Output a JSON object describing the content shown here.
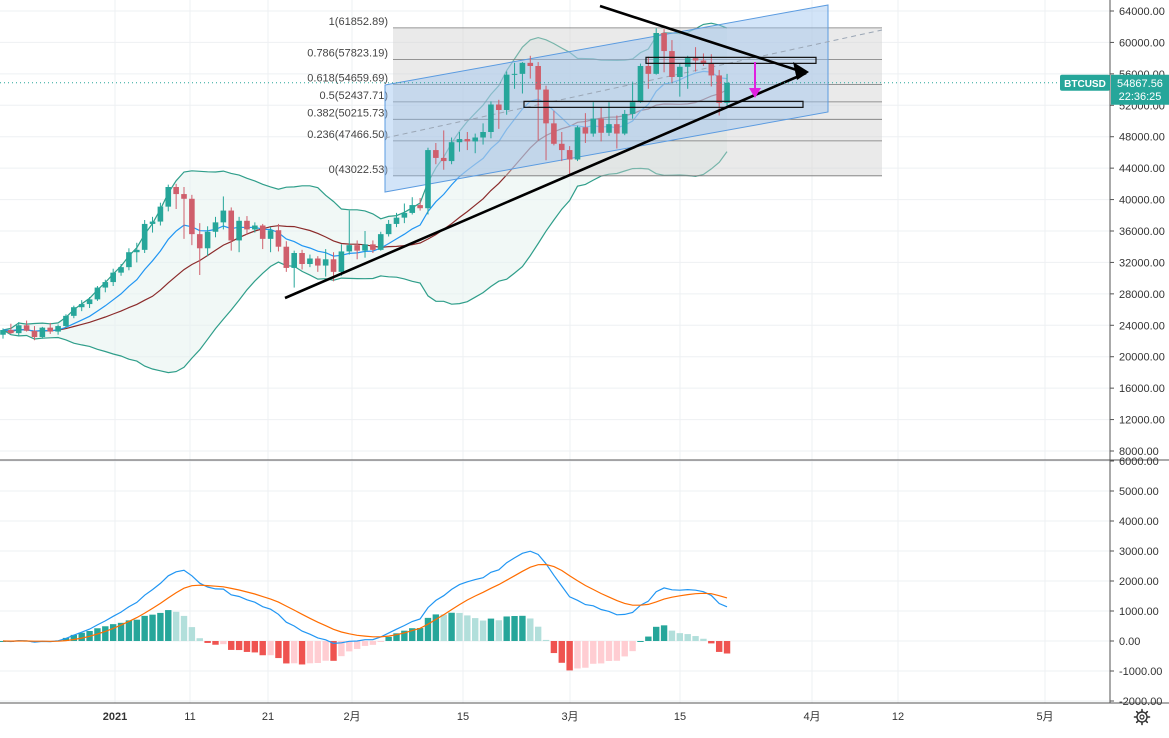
{
  "colors": {
    "up": "#26a69a",
    "down": "#ef5350",
    "down_candle": "#cf5f6c",
    "bb_basis": "#8b2b2b",
    "bb_band": "#2f9e8a",
    "ema_fast": "#2196f3",
    "macd_line": "#2196f3",
    "signal_line": "#ff6d00",
    "hist_up_strong": "#26a69a",
    "hist_up_weak": "#b2dfdb",
    "hist_down_strong": "#ef5350",
    "hist_down_weak": "#ffcdd2",
    "channel": "#5b9be0",
    "arrow": "#e020e0",
    "price_label_bg": "#26a69a"
  },
  "price_axis": {
    "ticks": [
      "64000.00",
      "60000.00",
      "56000.00",
      "52000.00",
      "48000.00",
      "44000.00",
      "40000.00",
      "36000.00",
      "32000.00",
      "28000.00",
      "24000.00",
      "20000.00",
      "16000.00",
      "12000.00",
      "8000.00"
    ]
  },
  "macd_axis": {
    "ticks": [
      "6000.00",
      "5000.00",
      "4000.00",
      "3000.00",
      "2000.00",
      "1000.00",
      "0.00",
      "-1000.00",
      "-2000.00"
    ]
  },
  "time_axis": {
    "labels": [
      "2021",
      "11",
      "21",
      "2月",
      "15",
      "3月",
      "15",
      "4月",
      "12",
      "5月"
    ]
  },
  "current_price": {
    "symbol": "BTCUSD",
    "price": "54867.56",
    "countdown": "22:36:25"
  },
  "fibonacci": {
    "levels": [
      {
        "label": "1(61852.89)",
        "value": 61852.89
      },
      {
        "label": "0.786(57823.19)",
        "value": 57823.19
      },
      {
        "label": "0.618(54659.69)",
        "value": 54659.69
      },
      {
        "label": "0.5(52437.71)",
        "value": 52437.71
      },
      {
        "label": "0.382(50215.73)",
        "value": 50215.73
      },
      {
        "label": "0.236(47466.50)",
        "value": 47466.5
      },
      {
        "label": "0(43022.53)",
        "value": 43022.53
      }
    ]
  },
  "chart_data": {
    "type": "candlestick",
    "symbol": "BTCUSD",
    "x_axis_labels": [
      "2021",
      "11",
      "21",
      "2月",
      "15",
      "3月",
      "15",
      "4月",
      "12",
      "5月"
    ],
    "price_range": [
      8000,
      64000
    ],
    "macd_range": [
      -2000,
      6000
    ],
    "candles_ohlc": [
      [
        22800,
        23600,
        22300,
        23400
      ],
      [
        23400,
        24200,
        22900,
        23000
      ],
      [
        23000,
        24400,
        22600,
        24000
      ],
      [
        24000,
        24600,
        23200,
        23300
      ],
      [
        23300,
        23900,
        22100,
        22500
      ],
      [
        22500,
        23800,
        22300,
        23700
      ],
      [
        23700,
        24300,
        22900,
        23200
      ],
      [
        23200,
        24100,
        22800,
        23900
      ],
      [
        23900,
        25400,
        23700,
        25200
      ],
      [
        25200,
        26500,
        24900,
        26300
      ],
      [
        26300,
        27200,
        25800,
        26700
      ],
      [
        26700,
        27600,
        26200,
        27300
      ],
      [
        27300,
        29000,
        27100,
        28800
      ],
      [
        28800,
        29800,
        28200,
        29500
      ],
      [
        29500,
        31200,
        29000,
        30700
      ],
      [
        30700,
        31800,
        30300,
        31400
      ],
      [
        31400,
        33800,
        31000,
        33300
      ],
      [
        33300,
        34500,
        32000,
        33600
      ],
      [
        33600,
        37400,
        33200,
        36900
      ],
      [
        36900,
        37800,
        35800,
        37200
      ],
      [
        37200,
        39600,
        36700,
        39100
      ],
      [
        39100,
        41900,
        38500,
        41600
      ],
      [
        41600,
        42000,
        38800,
        40700
      ],
      [
        40700,
        41600,
        35000,
        40100
      ],
      [
        40100,
        40600,
        34200,
        35600
      ],
      [
        35600,
        37000,
        30400,
        33800
      ],
      [
        33800,
        36600,
        32800,
        35900
      ],
      [
        35900,
        37800,
        35200,
        37100
      ],
      [
        37100,
        40400,
        36200,
        38600
      ],
      [
        38600,
        39000,
        33500,
        34800
      ],
      [
        34800,
        37800,
        33300,
        37300
      ],
      [
        37300,
        37900,
        35500,
        36200
      ],
      [
        36200,
        37100,
        35800,
        36700
      ],
      [
        36700,
        36900,
        33700,
        35000
      ],
      [
        35000,
        36500,
        33300,
        36100
      ],
      [
        36100,
        36900,
        33400,
        34000
      ],
      [
        34000,
        34700,
        30800,
        31300
      ],
      [
        31300,
        33500,
        28800,
        33200
      ],
      [
        33200,
        33600,
        31100,
        31800
      ],
      [
        31800,
        33000,
        31400,
        32500
      ],
      [
        32500,
        32800,
        30800,
        31600
      ],
      [
        31600,
        33700,
        30200,
        32400
      ],
      [
        32400,
        33300,
        29600,
        30800
      ],
      [
        30800,
        34300,
        30300,
        33400
      ],
      [
        33400,
        38600,
        33000,
        34200
      ],
      [
        34200,
        34800,
        32400,
        33500
      ],
      [
        33500,
        36000,
        32600,
        34300
      ],
      [
        34300,
        34800,
        33200,
        33600
      ],
      [
        33600,
        35900,
        33500,
        35600
      ],
      [
        35600,
        37400,
        35300,
        36900
      ],
      [
        36900,
        38300,
        36500,
        37700
      ],
      [
        37700,
        39500,
        37000,
        38300
      ],
      [
        38300,
        40300,
        38100,
        39300
      ],
      [
        39300,
        40200,
        38600,
        38900
      ],
      [
        38900,
        46600,
        38100,
        46300
      ],
      [
        46300,
        47200,
        44500,
        45300
      ],
      [
        45300,
        48800,
        43800,
        44900
      ],
      [
        44900,
        47900,
        44500,
        47300
      ],
      [
        47300,
        48600,
        46100,
        47700
      ],
      [
        47700,
        48600,
        46300,
        47400
      ],
      [
        47400,
        48400,
        45900,
        47900
      ],
      [
        47900,
        49700,
        47000,
        48600
      ],
      [
        48600,
        52500,
        47800,
        52100
      ],
      [
        52100,
        52700,
        49000,
        51400
      ],
      [
        51400,
        56300,
        50800,
        55900
      ],
      [
        55900,
        57400,
        54100,
        56000
      ],
      [
        56000,
        57500,
        53500,
        57400
      ],
      [
        57400,
        58300,
        55400,
        57000
      ],
      [
        57000,
        57500,
        47500,
        54000
      ],
      [
        54000,
        54500,
        45000,
        49700
      ],
      [
        49700,
        51300,
        46900,
        47100
      ],
      [
        47100,
        48600,
        44900,
        46300
      ],
      [
        46300,
        46800,
        43000,
        45100
      ],
      [
        45100,
        49400,
        44900,
        49200
      ],
      [
        49200,
        51000,
        47200,
        48400
      ],
      [
        48400,
        52400,
        48000,
        50300
      ],
      [
        50300,
        51700,
        47400,
        48500
      ],
      [
        48500,
        52400,
        48100,
        49600
      ],
      [
        49600,
        50700,
        46500,
        48400
      ],
      [
        48400,
        51400,
        48200,
        50900
      ],
      [
        50900,
        55000,
        50300,
        52400
      ],
      [
        52400,
        57300,
        52300,
        57000
      ],
      [
        57000,
        58200,
        54100,
        56000
      ],
      [
        56000,
        61800,
        55900,
        61200
      ],
      [
        61200,
        61700,
        56200,
        58900
      ],
      [
        58900,
        60300,
        54800,
        55600
      ],
      [
        55600,
        57300,
        53100,
        56900
      ],
      [
        56900,
        58300,
        54100,
        58000
      ],
      [
        58000,
        59400,
        56300,
        57700
      ],
      [
        57700,
        58600,
        57000,
        57300
      ],
      [
        57300,
        58500,
        54400,
        55800
      ],
      [
        55800,
        56500,
        50700,
        52300
      ],
      [
        52300,
        56000,
        51600,
        54868
      ]
    ],
    "indicators": [
      "Bollinger Bands (20,2)",
      "EMA",
      "MACD (12,26,9)"
    ],
    "fib_levels": [
      {
        "ratio": "1",
        "price": 61852.89
      },
      {
        "ratio": "0.786",
        "price": 57823.19
      },
      {
        "ratio": "0.618",
        "price": 54659.69
      },
      {
        "ratio": "0.5",
        "price": 52437.71
      },
      {
        "ratio": "0.382",
        "price": 50215.73
      },
      {
        "ratio": "0.236",
        "price": 47466.5
      },
      {
        "ratio": "0",
        "price": 43022.53
      }
    ],
    "last_price": 54867.56
  }
}
